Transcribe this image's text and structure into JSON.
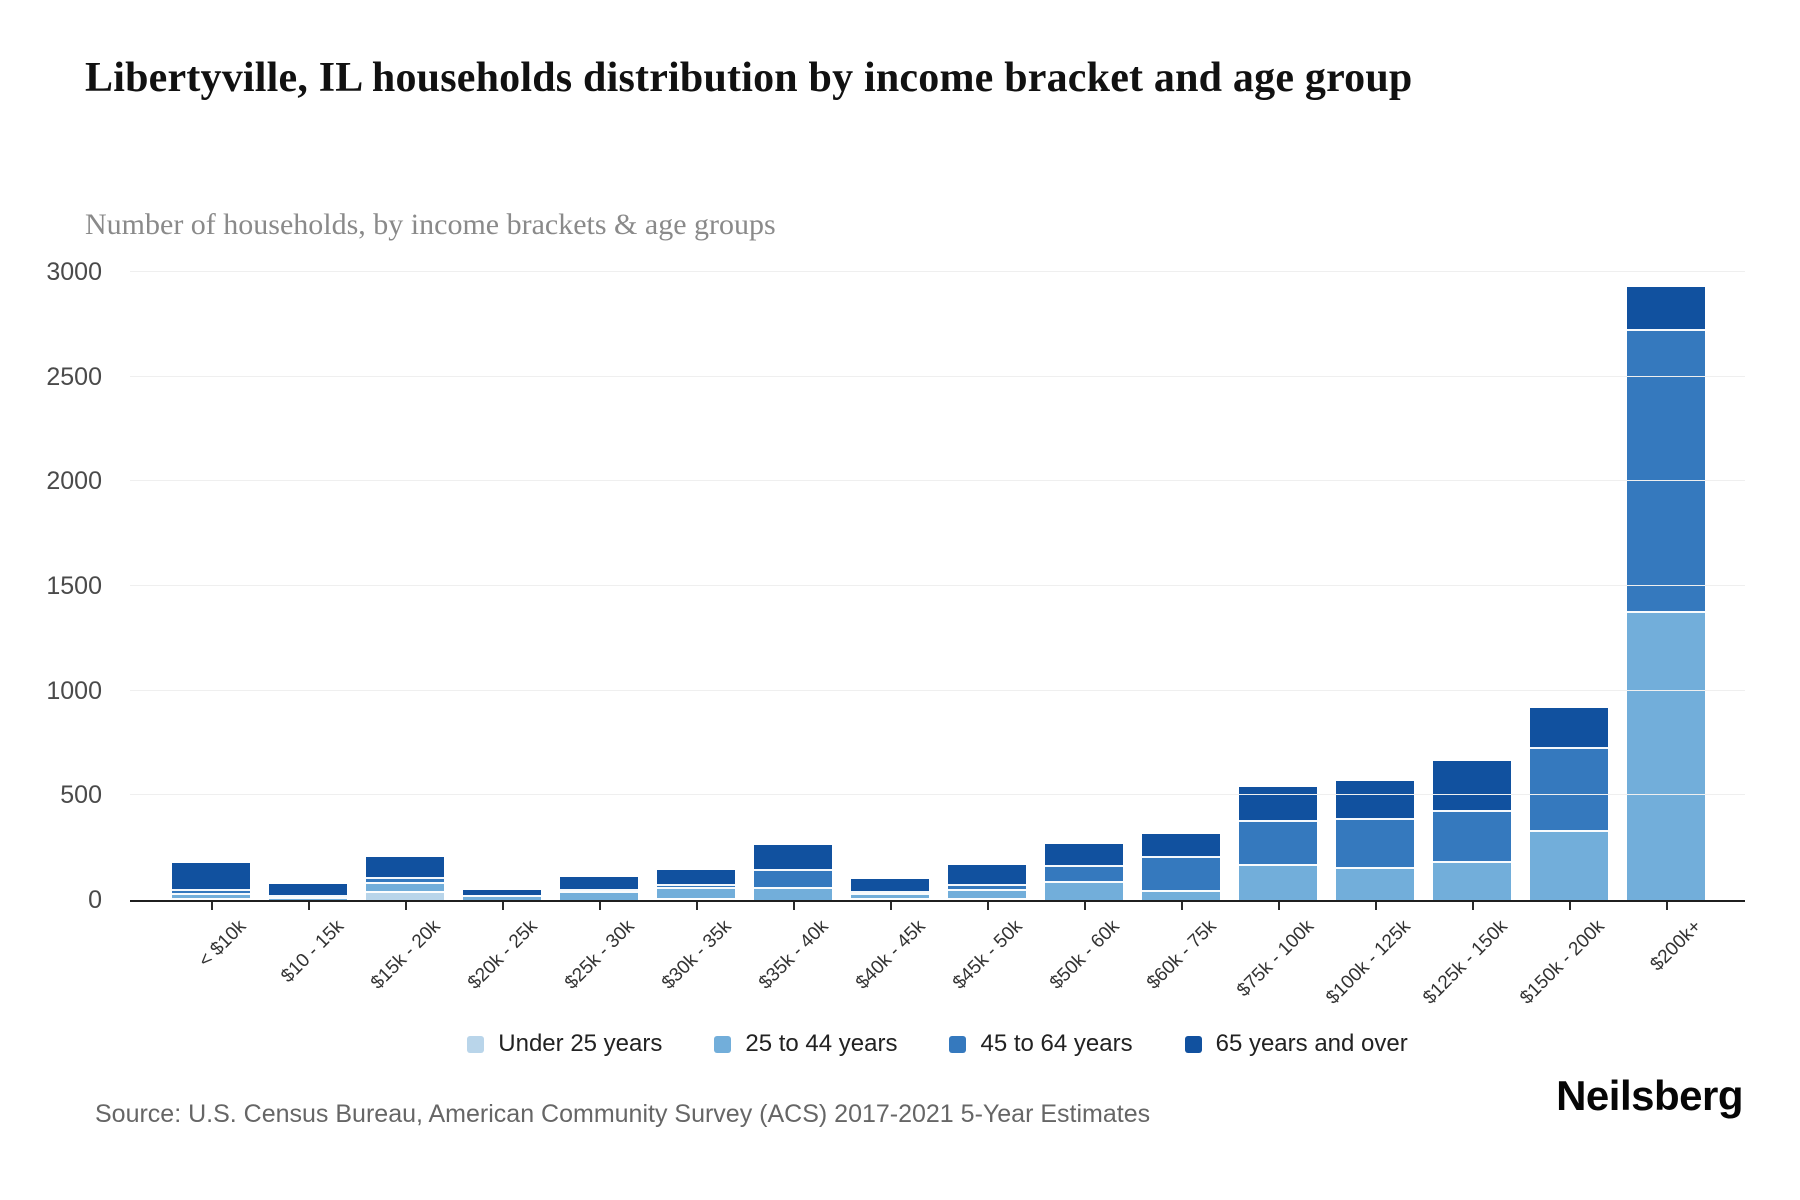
{
  "header": {
    "title": "Libertyville, IL households distribution by income bracket and age group",
    "subtitle": "Number of households, by income brackets & age groups"
  },
  "footer": {
    "source": "Source: U.S. Census Bureau, American Community Survey (ACS) 2017-2021 5-Year Estimates",
    "brand": "Neilsberg"
  },
  "chart_data": {
    "type": "bar",
    "stacked": true,
    "title": "Libertyville, IL households distribution by income bracket and age group",
    "subtitle": "Number of households, by income brackets & age groups",
    "xlabel": "",
    "ylabel": "",
    "ylim": [
      0,
      3000
    ],
    "yticks": [
      0,
      500,
      1000,
      1500,
      2000,
      2500,
      3000
    ],
    "grid": true,
    "legend_position": "bottom",
    "categories": [
      "< $10k",
      "$10 - 15k",
      "$15k - 20k",
      "$20k - 25k",
      "$25k - 30k",
      "$30k - 35k",
      "$35k - 40k",
      "$40k - 45k",
      "$45k - 50k",
      "$50k - 60k",
      "$60k - 75k",
      "$75k - 100k",
      "$100k - 125k",
      "$125k - 150k",
      "$150k - 200k",
      "$200k+"
    ],
    "series": [
      {
        "name": "Under 25 years",
        "color": "#b9d5ea",
        "values": [
          10,
          0,
          45,
          0,
          0,
          5,
          0,
          5,
          5,
          0,
          0,
          0,
          0,
          0,
          0,
          0
        ]
      },
      {
        "name": "25 to 44 years",
        "color": "#72aeda",
        "values": [
          25,
          15,
          40,
          25,
          45,
          55,
          60,
          25,
          45,
          90,
          50,
          170,
          160,
          185,
          335,
          1380
        ]
      },
      {
        "name": "45 to 64 years",
        "color": "#3579be",
        "values": [
          20,
          10,
          25,
          0,
          10,
          10,
          90,
          5,
          20,
          75,
          160,
          210,
          230,
          245,
          395,
          1350
        ]
      },
      {
        "name": "65 years and over",
        "color": "#11519f",
        "values": [
          120,
          50,
          95,
          25,
          55,
          70,
          115,
          55,
          95,
          105,
          105,
          160,
          180,
          235,
          185,
          200
        ]
      }
    ]
  }
}
